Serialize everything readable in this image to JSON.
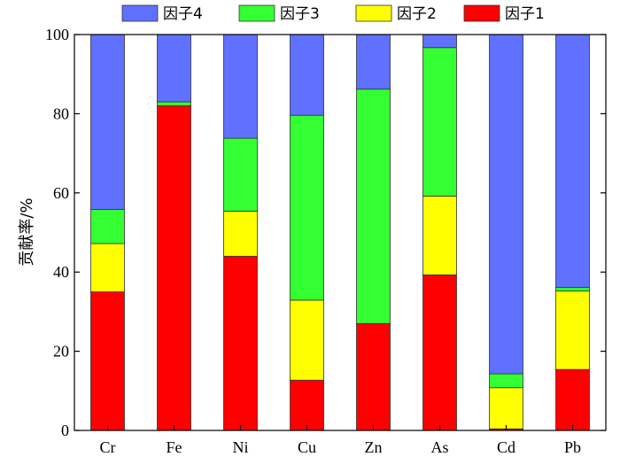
{
  "chart_data": {
    "type": "bar",
    "stacked": true,
    "categories": [
      "Cr",
      "Fe",
      "Ni",
      "Cu",
      "Zn",
      "As",
      "Cd",
      "Pb"
    ],
    "series": [
      {
        "name": "因子1",
        "color": "#ff0000",
        "values": [
          35,
          82,
          44,
          12.7,
          27,
          39.3,
          0.4,
          15.4
        ]
      },
      {
        "name": "因子2",
        "color": "#ffff00",
        "values": [
          12.2,
          0,
          11.4,
          20.2,
          0,
          19.9,
          10.4,
          19.8
        ]
      },
      {
        "name": "因子3",
        "color": "#33ff33",
        "values": [
          8.6,
          1,
          18.4,
          46.7,
          59.2,
          37.5,
          3.5,
          0.9
        ]
      },
      {
        "name": "因子4",
        "color": "#6070ff",
        "values": [
          44.2,
          17,
          26.2,
          20.4,
          13.8,
          3.3,
          85.7,
          63.9
        ]
      }
    ],
    "legend_order": [
      "因子4",
      "因子3",
      "因子2",
      "因子1"
    ],
    "legend_position": "top",
    "ylabel": "贡献率/%",
    "xlabel": "",
    "ylim": [
      0,
      100
    ],
    "yticks": [
      0,
      20,
      40,
      60,
      80,
      100
    ],
    "grid": false
  }
}
